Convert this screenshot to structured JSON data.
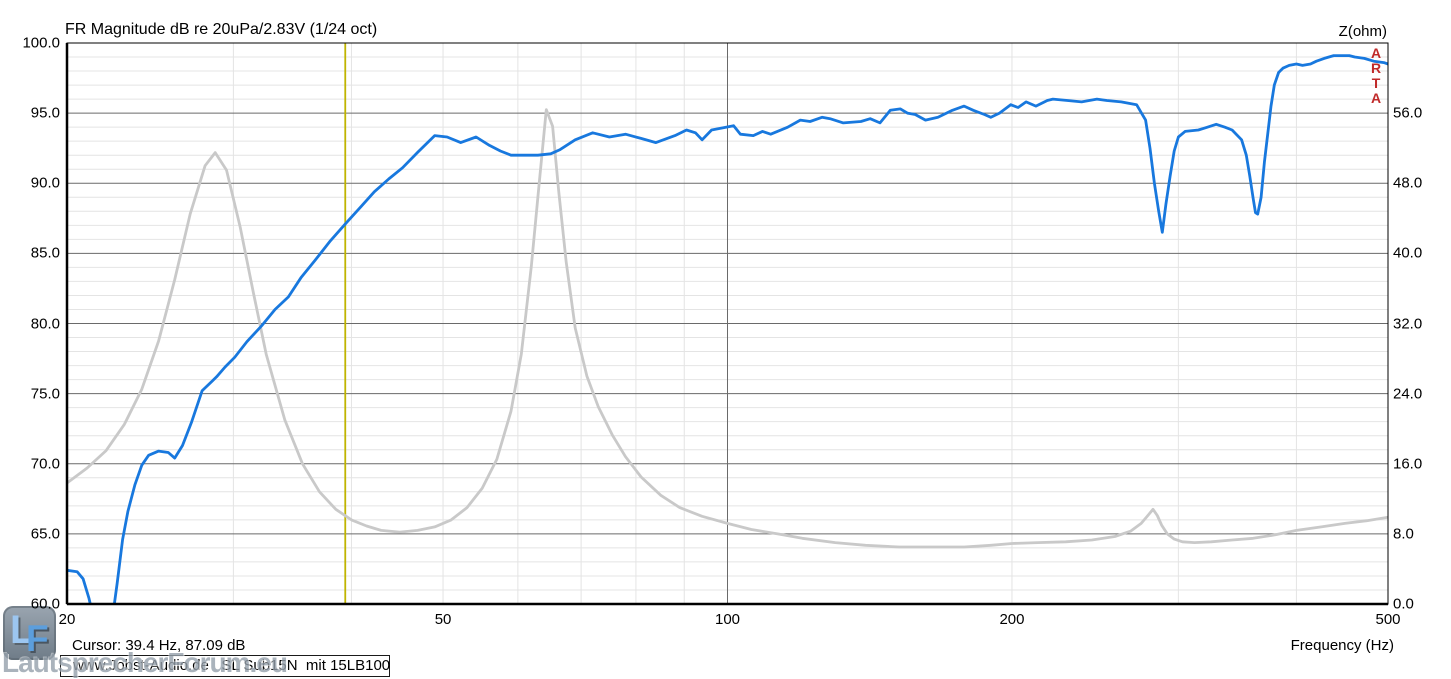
{
  "header": {
    "title": "FR Magnitude dB re 20uPa/2.83V (1/24 oct)",
    "right_axis_title": "Z(ohm)"
  },
  "footer": {
    "cursor_readout": "Cursor: 39.4 Hz, 87.09 dB",
    "x_axis_title": "Frequency (Hz)",
    "annotation": "www.Jobst-Audio.de   SL Sub15N  mit 15LB100"
  },
  "arta_vertical_label": "ARTA",
  "watermark": {
    "logo_letter_1": "L",
    "logo_letter_2": "F",
    "text": "LautsprecherForum.eu"
  },
  "colors": {
    "fr_curve": "#1878de",
    "impedance_curve": "#c9c9c9",
    "cursor_line": "#c0b400",
    "grid_major": "#6a6a6a",
    "grid_minor": "#e4e4e4",
    "plot_border": "#000000",
    "arta_label": "#c02a2a"
  },
  "chart_data": {
    "type": "line",
    "title": "FR Magnitude dB re 20uPa/2.83V (1/24 oct)",
    "x_axis": {
      "label": "Frequency (Hz)",
      "scale": "log",
      "min": 20,
      "max": 500,
      "tick_values": [
        20,
        50,
        100,
        200,
        500
      ],
      "tick_labels": [
        "20",
        "50",
        "100",
        "200",
        "500"
      ],
      "minor_gridlines": [
        30,
        40,
        50,
        60,
        70,
        80,
        90,
        200,
        300,
        400
      ],
      "major_gridlines": [
        100
      ]
    },
    "y_axis_left": {
      "label": "dB re 20uPa/2.83V",
      "min": 60,
      "max": 100,
      "major_step": 5,
      "minor_step": 1,
      "tick_values": [
        100,
        95,
        90,
        85,
        80,
        75,
        70,
        65,
        60
      ],
      "tick_labels": [
        "100.0",
        "95.0",
        "90.0",
        "85.0",
        "80.0",
        "75.0",
        "70.0",
        "65.0",
        "60.0"
      ]
    },
    "y_axis_right": {
      "label": "Z(ohm)",
      "min": 0,
      "max": 64,
      "tick_values": [
        56,
        48,
        40,
        32,
        24,
        16,
        8,
        0
      ],
      "tick_labels": [
        "56.0",
        "48.0",
        "40.0",
        "32.0",
        "24.0",
        "16.0",
        "8.0",
        "0.0"
      ],
      "ohms_per_5db": 8
    },
    "cursor": {
      "frequency_hz": 39.4,
      "magnitude_db": 87.09
    },
    "series": [
      {
        "name": "fr-magnitude",
        "axis": "left",
        "unit": "dB",
        "color": "#1878de",
        "points": [
          [
            20,
            62.4
          ],
          [
            20.5,
            62.3
          ],
          [
            20.8,
            61.8
          ],
          [
            21.1,
            60.4
          ],
          [
            21.4,
            58.6
          ],
          [
            22.3,
            58.6
          ],
          [
            22.6,
            61.5
          ],
          [
            22.9,
            64.6
          ],
          [
            23.2,
            66.6
          ],
          [
            23.6,
            68.5
          ],
          [
            24,
            69.9
          ],
          [
            24.4,
            70.6
          ],
          [
            25,
            70.9
          ],
          [
            25.6,
            70.8
          ],
          [
            26,
            70.4
          ],
          [
            26.5,
            71.3
          ],
          [
            27.1,
            73
          ],
          [
            27.8,
            75.2
          ],
          [
            28.5,
            75.9
          ],
          [
            28.8,
            76.2
          ],
          [
            29.4,
            76.9
          ],
          [
            30.1,
            77.6
          ],
          [
            31,
            78.7
          ],
          [
            32.2,
            79.9
          ],
          [
            33.2,
            81
          ],
          [
            34.3,
            81.9
          ],
          [
            35.4,
            83.3
          ],
          [
            36.6,
            84.5
          ],
          [
            38,
            85.9
          ],
          [
            39.4,
            87.1
          ],
          [
            40.9,
            88.3
          ],
          [
            42.3,
            89.4
          ],
          [
            43.8,
            90.3
          ],
          [
            45.3,
            91.1
          ],
          [
            47,
            92.2
          ],
          [
            49,
            93.4
          ],
          [
            50.5,
            93.3
          ],
          [
            52.2,
            92.9
          ],
          [
            54.2,
            93.3
          ],
          [
            56,
            92.7
          ],
          [
            57.5,
            92.3
          ],
          [
            59,
            92
          ],
          [
            61,
            92
          ],
          [
            63,
            92
          ],
          [
            65,
            92.1
          ],
          [
            66.5,
            92.4
          ],
          [
            69,
            93.1
          ],
          [
            72,
            93.6
          ],
          [
            75,
            93.3
          ],
          [
            78,
            93.5
          ],
          [
            81,
            93.2
          ],
          [
            84,
            92.9
          ],
          [
            88,
            93.4
          ],
          [
            90.5,
            93.8
          ],
          [
            92.5,
            93.6
          ],
          [
            94,
            93.1
          ],
          [
            96.2,
            93.8
          ],
          [
            99.6,
            94
          ],
          [
            101.5,
            94.1
          ],
          [
            103.2,
            93.5
          ],
          [
            106.5,
            93.4
          ],
          [
            108.9,
            93.7
          ],
          [
            111.1,
            93.5
          ],
          [
            115.8,
            94
          ],
          [
            119.4,
            94.5
          ],
          [
            122.3,
            94.4
          ],
          [
            125.9,
            94.7
          ],
          [
            128.4,
            94.6
          ],
          [
            132.6,
            94.3
          ],
          [
            138.4,
            94.4
          ],
          [
            141.6,
            94.6
          ],
          [
            145,
            94.3
          ],
          [
            148.7,
            95.2
          ],
          [
            152.4,
            95.3
          ],
          [
            155,
            95
          ],
          [
            158,
            94.9
          ],
          [
            162,
            94.5
          ],
          [
            167,
            94.7
          ],
          [
            173,
            95.2
          ],
          [
            178,
            95.5
          ],
          [
            182,
            95.2
          ],
          [
            187,
            94.9
          ],
          [
            190,
            94.7
          ],
          [
            194,
            95
          ],
          [
            199.4,
            95.6
          ],
          [
            203,
            95.4
          ],
          [
            207,
            95.8
          ],
          [
            212,
            95.5
          ],
          [
            218,
            95.9
          ],
          [
            221,
            96
          ],
          [
            229,
            95.9
          ],
          [
            237,
            95.8
          ],
          [
            246,
            96
          ],
          [
            252,
            95.9
          ],
          [
            261,
            95.8
          ],
          [
            271,
            95.6
          ],
          [
            277,
            94.5
          ],
          [
            280,
            92.5
          ],
          [
            283,
            90
          ],
          [
            286,
            88
          ],
          [
            288.5,
            86.5
          ],
          [
            291,
            88.5
          ],
          [
            294,
            90.5
          ],
          [
            297,
            92.3
          ],
          [
            300,
            93.3
          ],
          [
            305,
            93.7
          ],
          [
            315,
            93.8
          ],
          [
            322,
            94
          ],
          [
            329,
            94.2
          ],
          [
            336,
            94
          ],
          [
            342,
            93.8
          ],
          [
            350,
            93.1
          ],
          [
            354,
            92
          ],
          [
            357,
            90.5
          ],
          [
            360,
            88.9
          ],
          [
            362,
            87.9
          ],
          [
            364,
            87.8
          ],
          [
            367,
            89
          ],
          [
            370,
            91.5
          ],
          [
            373,
            93.5
          ],
          [
            376,
            95.5
          ],
          [
            379,
            97
          ],
          [
            383,
            97.9
          ],
          [
            387,
            98.2
          ],
          [
            393,
            98.4
          ],
          [
            400,
            98.5
          ],
          [
            406,
            98.4
          ],
          [
            414,
            98.5
          ],
          [
            420,
            98.7
          ],
          [
            428,
            98.9
          ],
          [
            438,
            99.1
          ],
          [
            446,
            99.1
          ],
          [
            455,
            99.1
          ],
          [
            461,
            99
          ],
          [
            472,
            98.9
          ],
          [
            483,
            98.7
          ],
          [
            495,
            98.6
          ],
          [
            500,
            98.5
          ]
        ]
      },
      {
        "name": "impedance",
        "axis": "right",
        "unit": "ohm",
        "color": "#c9c9c9",
        "points": [
          [
            20,
            13.8
          ],
          [
            21,
            15.5
          ],
          [
            22,
            17.5
          ],
          [
            23,
            20.5
          ],
          [
            24,
            24.5
          ],
          [
            25,
            30
          ],
          [
            26,
            37
          ],
          [
            27,
            44.5
          ],
          [
            28,
            50
          ],
          [
            28.7,
            51.5
          ],
          [
            29.5,
            49.5
          ],
          [
            30.5,
            43
          ],
          [
            31.5,
            35.5
          ],
          [
            32.5,
            28.5
          ],
          [
            34,
            21
          ],
          [
            35.5,
            16
          ],
          [
            37,
            12.8
          ],
          [
            38.5,
            10.8
          ],
          [
            40,
            9.6
          ],
          [
            41.5,
            8.9
          ],
          [
            43,
            8.4
          ],
          [
            45,
            8.2
          ],
          [
            47,
            8.4
          ],
          [
            49,
            8.8
          ],
          [
            51,
            9.6
          ],
          [
            53,
            11
          ],
          [
            55,
            13.2
          ],
          [
            57,
            16.5
          ],
          [
            59,
            22
          ],
          [
            60.5,
            28.5
          ],
          [
            62,
            38.5
          ],
          [
            63.2,
            48
          ],
          [
            64.3,
            56.4
          ],
          [
            65.3,
            54.5
          ],
          [
            66.3,
            47
          ],
          [
            67.5,
            39
          ],
          [
            69,
            31.5
          ],
          [
            71,
            26
          ],
          [
            73,
            22.5
          ],
          [
            75.5,
            19.3
          ],
          [
            78,
            16.8
          ],
          [
            81,
            14.5
          ],
          [
            85,
            12.4
          ],
          [
            89,
            11
          ],
          [
            94,
            10
          ],
          [
            100,
            9.2
          ],
          [
            106,
            8.5
          ],
          [
            113,
            8
          ],
          [
            120,
            7.5
          ],
          [
            130,
            7
          ],
          [
            140,
            6.7
          ],
          [
            152,
            6.5
          ],
          [
            165,
            6.5
          ],
          [
            178,
            6.5
          ],
          [
            190,
            6.7
          ],
          [
            200,
            6.9
          ],
          [
            213,
            7
          ],
          [
            228,
            7.1
          ],
          [
            243,
            7.3
          ],
          [
            257,
            7.7
          ],
          [
            267,
            8.3
          ],
          [
            274,
            9.2
          ],
          [
            279,
            10.2
          ],
          [
            282,
            10.8
          ],
          [
            285,
            10.1
          ],
          [
            288,
            9
          ],
          [
            292,
            8
          ],
          [
            297,
            7.4
          ],
          [
            303,
            7.1
          ],
          [
            312,
            7
          ],
          [
            325,
            7.1
          ],
          [
            342,
            7.3
          ],
          [
            360,
            7.5
          ],
          [
            380,
            7.9
          ],
          [
            400,
            8.4
          ],
          [
            425,
            8.8
          ],
          [
            450,
            9.2
          ],
          [
            475,
            9.5
          ],
          [
            500,
            9.9
          ]
        ]
      }
    ]
  }
}
